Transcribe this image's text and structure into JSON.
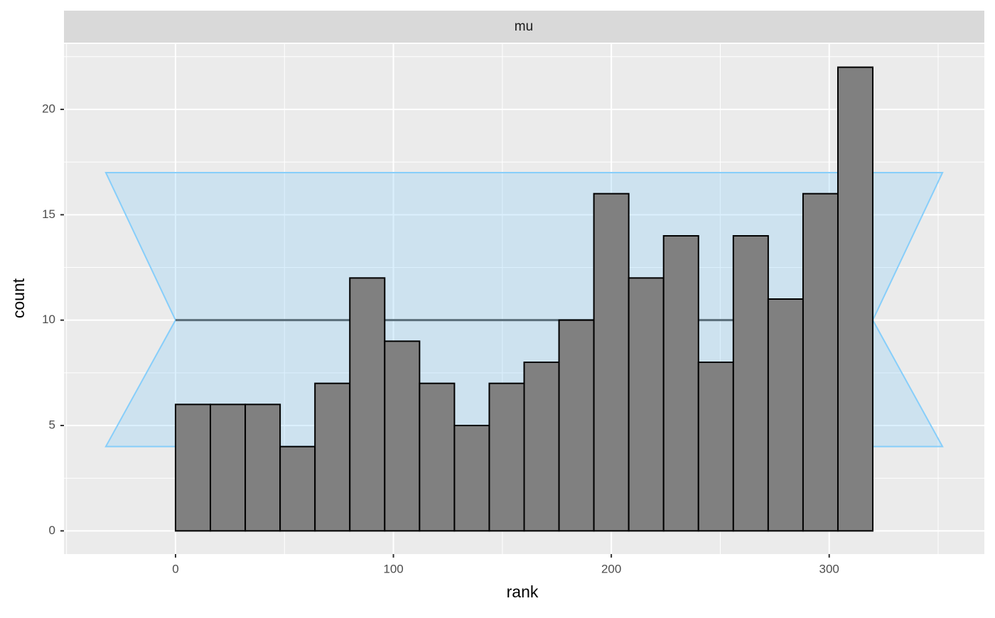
{
  "chart_data": {
    "type": "histogram",
    "strip_label": "mu",
    "x_label": "rank",
    "y_label": "count",
    "bins": [
      0,
      16,
      32,
      48,
      64,
      80,
      96,
      112,
      128,
      144,
      160,
      176,
      192,
      208,
      224,
      240,
      256,
      272,
      288,
      304,
      320
    ],
    "counts": [
      6,
      6,
      6,
      4,
      7,
      12,
      9,
      7,
      5,
      7,
      8,
      10,
      16,
      12,
      14,
      8,
      14,
      11,
      16,
      22
    ],
    "bar_color": "#808080",
    "bar_edge_color": "#000000",
    "band": {
      "x": [
        -32,
        0,
        -32,
        352,
        320,
        352
      ],
      "y": [
        4,
        10,
        17,
        17,
        10,
        4
      ],
      "color": "#87cefa"
    },
    "mean_line": {
      "x": [
        0,
        320
      ],
      "y": [
        10,
        10
      ],
      "color": "#5a6e7a"
    },
    "xlim": [
      -51.2,
      371.2
    ],
    "ylim": [
      -1.1,
      23.1
    ],
    "xticks": [
      0,
      100,
      200,
      300
    ],
    "yticks": [
      0,
      5,
      10,
      15,
      20
    ],
    "x_minor_ticks": [
      -50,
      50,
      150,
      250,
      350
    ],
    "y_minor_ticks": [
      2.5,
      7.5,
      12.5,
      17.5,
      22.5
    ],
    "grid": true
  }
}
